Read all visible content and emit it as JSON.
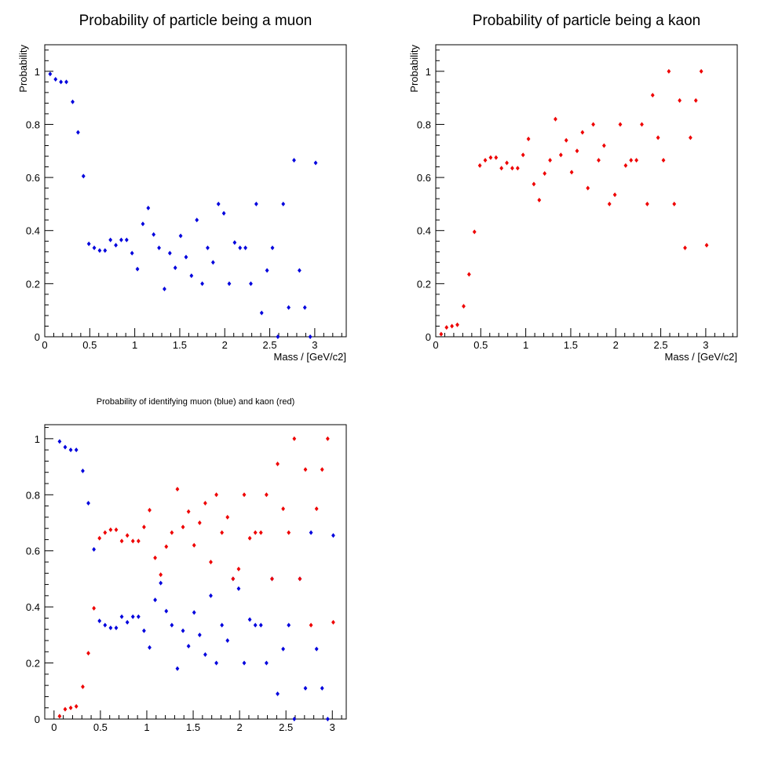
{
  "chart_data": [
    {
      "type": "scatter",
      "title": "Probability of particle being a muon",
      "xlabel": "Mass / [GeV/c2]",
      "ylabel": "Probability",
      "xlim": [
        0,
        3.35
      ],
      "ylim": [
        0,
        1.1
      ],
      "grid": false,
      "series": [
        {
          "color": "#0000dd",
          "points": [
            [
              0.06,
              0.99
            ],
            [
              0.12,
              0.97
            ],
            [
              0.18,
              0.96
            ],
            [
              0.24,
              0.96
            ],
            [
              0.31,
              0.885
            ],
            [
              0.37,
              0.77
            ],
            [
              0.43,
              0.605
            ],
            [
              0.49,
              0.35
            ],
            [
              0.55,
              0.335
            ],
            [
              0.61,
              0.325
            ],
            [
              0.67,
              0.325
            ],
            [
              0.73,
              0.365
            ],
            [
              0.79,
              0.345
            ],
            [
              0.85,
              0.365
            ],
            [
              0.91,
              0.365
            ],
            [
              0.97,
              0.315
            ],
            [
              1.03,
              0.255
            ],
            [
              1.09,
              0.425
            ],
            [
              1.15,
              0.485
            ],
            [
              1.21,
              0.385
            ],
            [
              1.27,
              0.335
            ],
            [
              1.33,
              0.18
            ],
            [
              1.39,
              0.315
            ],
            [
              1.45,
              0.26
            ],
            [
              1.51,
              0.38
            ],
            [
              1.57,
              0.3
            ],
            [
              1.63,
              0.23
            ],
            [
              1.69,
              0.44
            ],
            [
              1.75,
              0.2
            ],
            [
              1.81,
              0.335
            ],
            [
              1.87,
              0.28
            ],
            [
              1.93,
              0.5
            ],
            [
              1.99,
              0.465
            ],
            [
              2.05,
              0.2
            ],
            [
              2.11,
              0.355
            ],
            [
              2.17,
              0.335
            ],
            [
              2.23,
              0.335
            ],
            [
              2.29,
              0.2
            ],
            [
              2.35,
              0.5
            ],
            [
              2.41,
              0.09
            ],
            [
              2.47,
              0.25
            ],
            [
              2.53,
              0.335
            ],
            [
              2.59,
              0.0
            ],
            [
              2.65,
              0.5
            ],
            [
              2.71,
              0.11
            ],
            [
              2.77,
              0.665
            ],
            [
              2.83,
              0.25
            ],
            [
              2.89,
              0.11
            ],
            [
              2.95,
              0.0
            ],
            [
              3.01,
              0.655
            ]
          ]
        }
      ],
      "xticks": [
        "0",
        "0.5",
        "1",
        "1.5",
        "2",
        "2.5",
        "3"
      ],
      "yticks": [
        "0",
        "0.2",
        "0.4",
        "0.6",
        "0.8",
        "1"
      ]
    },
    {
      "type": "scatter",
      "title": "Probability of particle being a kaon",
      "xlabel": "Mass / [GeV/c2]",
      "ylabel": "Probability",
      "xlim": [
        0,
        3.35
      ],
      "ylim": [
        0,
        1.1
      ],
      "grid": false,
      "series": [
        {
          "color": "#ee0000",
          "points": [
            [
              0.06,
              0.01
            ],
            [
              0.12,
              0.035
            ],
            [
              0.18,
              0.04
            ],
            [
              0.24,
              0.045
            ],
            [
              0.31,
              0.115
            ],
            [
              0.37,
              0.235
            ],
            [
              0.43,
              0.395
            ],
            [
              0.49,
              0.645
            ],
            [
              0.55,
              0.665
            ],
            [
              0.61,
              0.675
            ],
            [
              0.67,
              0.675
            ],
            [
              0.73,
              0.635
            ],
            [
              0.79,
              0.655
            ],
            [
              0.85,
              0.635
            ],
            [
              0.91,
              0.635
            ],
            [
              0.97,
              0.685
            ],
            [
              1.03,
              0.745
            ],
            [
              1.09,
              0.575
            ],
            [
              1.15,
              0.515
            ],
            [
              1.21,
              0.615
            ],
            [
              1.27,
              0.665
            ],
            [
              1.33,
              0.82
            ],
            [
              1.39,
              0.685
            ],
            [
              1.45,
              0.74
            ],
            [
              1.51,
              0.62
            ],
            [
              1.57,
              0.7
            ],
            [
              1.63,
              0.77
            ],
            [
              1.69,
              0.56
            ],
            [
              1.75,
              0.8
            ],
            [
              1.81,
              0.665
            ],
            [
              1.87,
              0.72
            ],
            [
              1.93,
              0.5
            ],
            [
              1.99,
              0.535
            ],
            [
              2.05,
              0.8
            ],
            [
              2.11,
              0.645
            ],
            [
              2.17,
              0.665
            ],
            [
              2.23,
              0.665
            ],
            [
              2.29,
              0.8
            ],
            [
              2.35,
              0.5
            ],
            [
              2.41,
              0.91
            ],
            [
              2.47,
              0.75
            ],
            [
              2.53,
              0.665
            ],
            [
              2.59,
              1.0
            ],
            [
              2.65,
              0.5
            ],
            [
              2.71,
              0.89
            ],
            [
              2.77,
              0.335
            ],
            [
              2.83,
              0.75
            ],
            [
              2.89,
              0.89
            ],
            [
              2.95,
              1.0
            ],
            [
              3.01,
              0.345
            ]
          ]
        }
      ],
      "xticks": [
        "0",
        "0.5",
        "1",
        "1.5",
        "2",
        "2.5",
        "3"
      ],
      "yticks": [
        "0",
        "0.2",
        "0.4",
        "0.6",
        "0.8",
        "1"
      ]
    },
    {
      "type": "scatter",
      "title": "Probability of identifying muon (blue) and kaon (red)",
      "xlabel": "",
      "ylabel": "",
      "xlim": [
        -0.1,
        3.15
      ],
      "ylim": [
        0,
        1.05
      ],
      "grid": false,
      "series": [
        {
          "color": "#0000dd",
          "ref": 0
        },
        {
          "color": "#ee0000",
          "ref": 1
        }
      ],
      "xticks": [
        "0",
        "0.5",
        "1",
        "1.5",
        "2",
        "2.5",
        "3"
      ],
      "yticks": [
        "0",
        "0.2",
        "0.4",
        "0.6",
        "0.8",
        "1"
      ]
    }
  ]
}
